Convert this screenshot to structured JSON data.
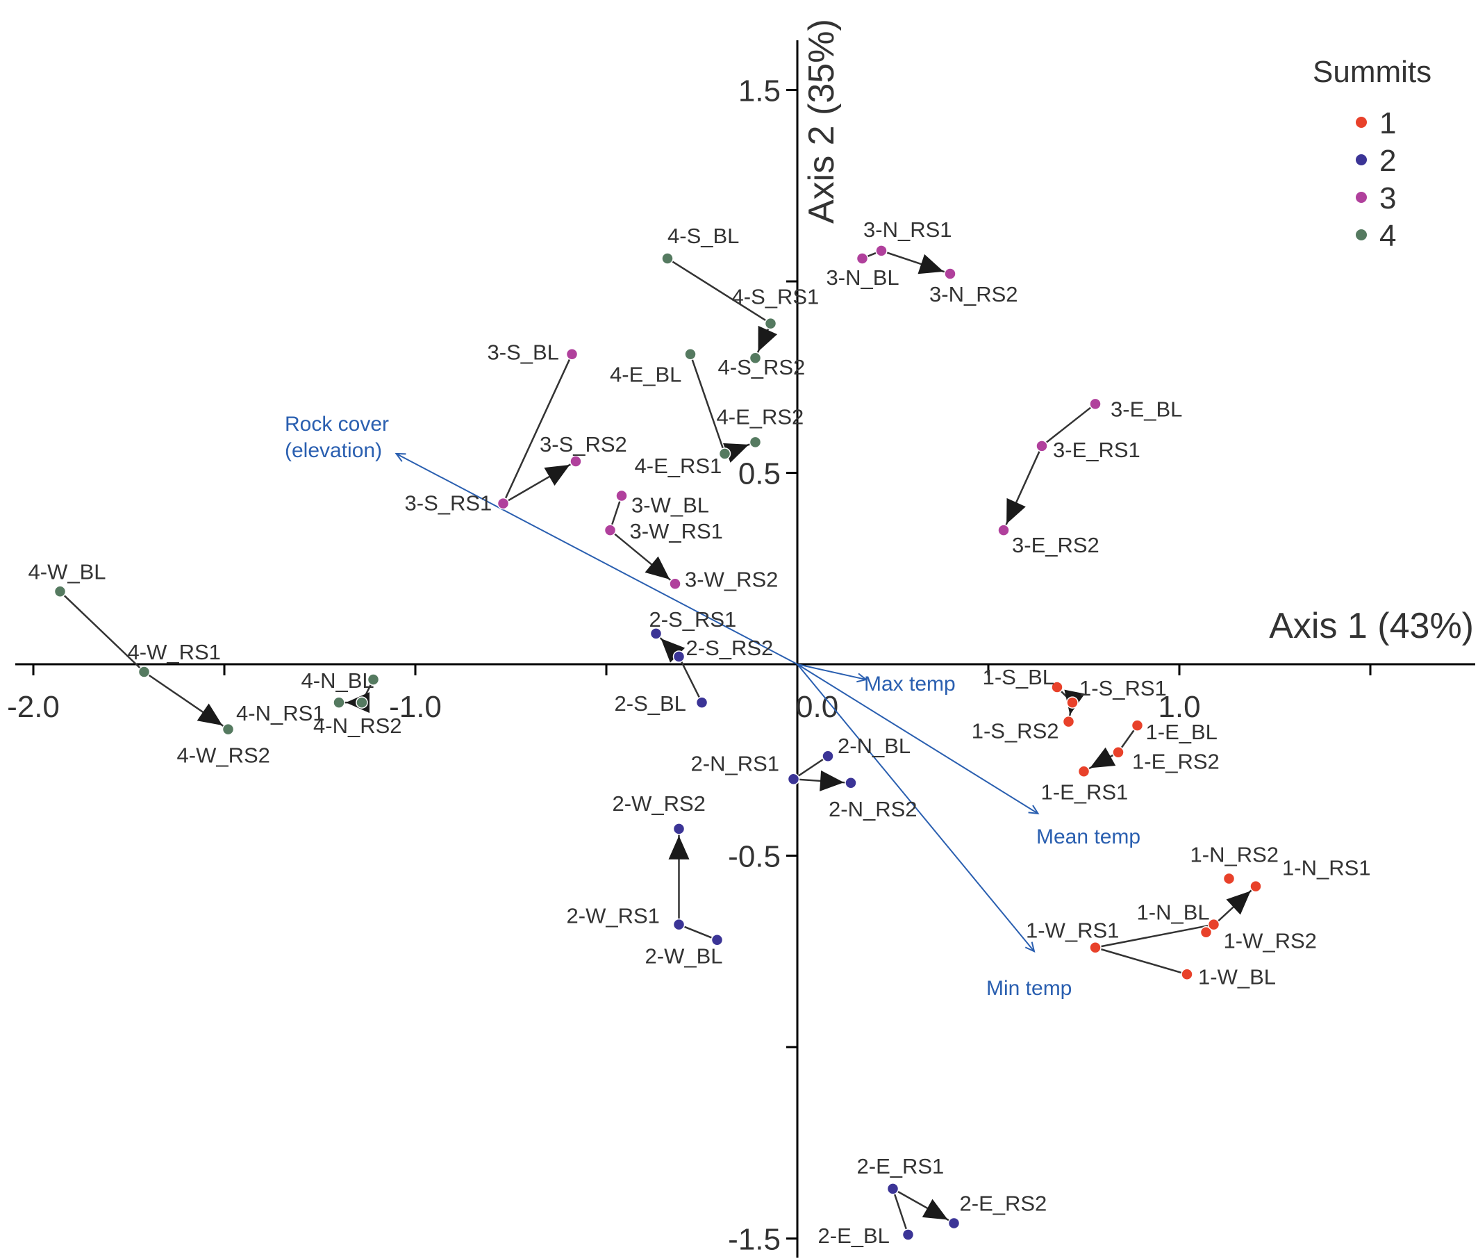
{
  "chart_data": {
    "type": "scatter",
    "title": "",
    "x_axis": {
      "label": "Axis 1 (43%)",
      "range": [
        -2.05,
        1.8
      ],
      "ticks": [
        -2.0,
        -1.0,
        0.0,
        1.0
      ],
      "tick_labels": [
        "-2.0",
        "-1.0",
        "0.0",
        "1.0"
      ]
    },
    "y_axis": {
      "label": "Axis 2 (35%)",
      "range": [
        -1.55,
        1.6
      ],
      "ticks": [
        1.5,
        0.5,
        -0.5,
        -1.5
      ],
      "tick_labels": [
        "1.5",
        "0.5",
        "-0.5",
        "-1.5"
      ],
      "minor_ticks": [
        1.0,
        -1.0
      ]
    },
    "legend": {
      "title": "Summits",
      "placement": "top-right",
      "entries": [
        {
          "label": "1",
          "color": "#e8412a"
        },
        {
          "label": "2",
          "color": "#3b3496"
        },
        {
          "label": "3",
          "color": "#b0409c"
        },
        {
          "label": "4",
          "color": "#557a60"
        }
      ]
    },
    "points": [
      {
        "label": "1-S_BL",
        "summit": 1,
        "x": 0.68,
        "y": -0.06
      },
      {
        "label": "1-S_RS1",
        "summit": 1,
        "x": 0.72,
        "y": -0.1
      },
      {
        "label": "1-S_RS2",
        "summit": 1,
        "x": 0.71,
        "y": -0.15
      },
      {
        "label": "1-E_BL",
        "summit": 1,
        "x": 0.89,
        "y": -0.16
      },
      {
        "label": "1-E_RS1",
        "summit": 1,
        "x": 0.75,
        "y": -0.28
      },
      {
        "label": "1-E_RS2",
        "summit": 1,
        "x": 0.84,
        "y": -0.23
      },
      {
        "label": "1-N_BL",
        "summit": 1,
        "x": 1.07,
        "y": -0.7
      },
      {
        "label": "1-N_RS1",
        "summit": 1,
        "x": 1.2,
        "y": -0.58
      },
      {
        "label": "1-N_RS2",
        "summit": 1,
        "x": 1.13,
        "y": -0.56
      },
      {
        "label": "1-W_BL",
        "summit": 1,
        "x": 1.02,
        "y": -0.81
      },
      {
        "label": "1-W_RS1",
        "summit": 1,
        "x": 0.78,
        "y": -0.74
      },
      {
        "label": "1-W_RS2",
        "summit": 1,
        "x": 1.09,
        "y": -0.68
      },
      {
        "label": "2-S_BL",
        "summit": 2,
        "x": -0.25,
        "y": -0.1
      },
      {
        "label": "2-S_RS1",
        "summit": 2,
        "x": -0.37,
        "y": 0.08
      },
      {
        "label": "2-S_RS2",
        "summit": 2,
        "x": -0.31,
        "y": 0.02
      },
      {
        "label": "2-N_BL",
        "summit": 2,
        "x": 0.08,
        "y": -0.24
      },
      {
        "label": "2-N_RS1",
        "summit": 2,
        "x": -0.01,
        "y": -0.3
      },
      {
        "label": "2-N_RS2",
        "summit": 2,
        "x": 0.14,
        "y": -0.31
      },
      {
        "label": "2-W_BL",
        "summit": 2,
        "x": -0.21,
        "y": -0.72
      },
      {
        "label": "2-W_RS1",
        "summit": 2,
        "x": -0.31,
        "y": -0.68
      },
      {
        "label": "2-W_RS2",
        "summit": 2,
        "x": -0.31,
        "y": -0.43
      },
      {
        "label": "2-E_BL",
        "summit": 2,
        "x": 0.29,
        "y": -1.49
      },
      {
        "label": "2-E_RS1",
        "summit": 2,
        "x": 0.25,
        "y": -1.37
      },
      {
        "label": "2-E_RS2",
        "summit": 2,
        "x": 0.41,
        "y": -1.46
      },
      {
        "label": "3-N_BL",
        "summit": 3,
        "x": 0.17,
        "y": 1.06
      },
      {
        "label": "3-N_RS1",
        "summit": 3,
        "x": 0.22,
        "y": 1.08
      },
      {
        "label": "3-N_RS2",
        "summit": 3,
        "x": 0.4,
        "y": 1.02
      },
      {
        "label": "3-S_BL",
        "summit": 3,
        "x": -0.59,
        "y": 0.81
      },
      {
        "label": "3-S_RS1",
        "summit": 3,
        "x": -0.77,
        "y": 0.42
      },
      {
        "label": "3-S_RS2",
        "summit": 3,
        "x": -0.58,
        "y": 0.53
      },
      {
        "label": "3-E_BL",
        "summit": 3,
        "x": 0.78,
        "y": 0.68
      },
      {
        "label": "3-E_RS1",
        "summit": 3,
        "x": 0.64,
        "y": 0.57
      },
      {
        "label": "3-E_RS2",
        "summit": 3,
        "x": 0.54,
        "y": 0.35
      },
      {
        "label": "3-W_BL",
        "summit": 3,
        "x": -0.46,
        "y": 0.44
      },
      {
        "label": "3-W_RS1",
        "summit": 3,
        "x": -0.49,
        "y": 0.35
      },
      {
        "label": "3-W_RS2",
        "summit": 3,
        "x": -0.32,
        "y": 0.21
      },
      {
        "label": "4-S_BL",
        "summit": 4,
        "x": -0.34,
        "y": 1.06
      },
      {
        "label": "4-S_RS1",
        "summit": 4,
        "x": -0.07,
        "y": 0.89
      },
      {
        "label": "4-S_RS2",
        "summit": 4,
        "x": -0.11,
        "y": 0.8
      },
      {
        "label": "4-E_BL",
        "summit": 4,
        "x": -0.28,
        "y": 0.81
      },
      {
        "label": "4-E_RS1",
        "summit": 4,
        "x": -0.19,
        "y": 0.55
      },
      {
        "label": "4-E_RS2",
        "summit": 4,
        "x": -0.11,
        "y": 0.58
      },
      {
        "label": "4-N_BL",
        "summit": 4,
        "x": -1.11,
        "y": -0.04
      },
      {
        "label": "4-N_RS1",
        "summit": 4,
        "x": -1.2,
        "y": -0.1
      },
      {
        "label": "4-N_RS2",
        "summit": 4,
        "x": -1.14,
        "y": -0.1
      },
      {
        "label": "4-W_BL",
        "summit": 4,
        "x": -1.93,
        "y": 0.19
      },
      {
        "label": "4-W_RS1",
        "summit": 4,
        "x": -1.71,
        "y": -0.02
      },
      {
        "label": "4-W_RS2",
        "summit": 4,
        "x": -1.49,
        "y": -0.17
      }
    ],
    "trajectories": [
      [
        "1-S_BL",
        "1-S_RS1",
        "1-S_RS2"
      ],
      [
        "1-E_BL",
        "1-E_RS2",
        "1-E_RS1"
      ],
      [
        "1-W_BL",
        "1-W_RS1",
        "1-W_RS2",
        "1-N_BL",
        "1-N_RS1"
      ],
      [
        "2-S_BL",
        "2-S_RS2",
        "2-S_RS1"
      ],
      [
        "2-N_BL",
        "2-N_RS1",
        "2-N_RS2"
      ],
      [
        "2-W_BL",
        "2-W_RS1",
        "2-W_RS2"
      ],
      [
        "2-E_BL",
        "2-E_RS1",
        "2-E_RS2"
      ],
      [
        "3-N_BL",
        "3-N_RS1",
        "3-N_RS2"
      ],
      [
        "3-S_BL",
        "3-S_RS1",
        "3-S_RS2"
      ],
      [
        "3-E_BL",
        "3-E_RS1",
        "3-E_RS2"
      ],
      [
        "3-W_BL",
        "3-W_RS1",
        "3-W_RS2"
      ],
      [
        "4-S_BL",
        "4-S_RS1",
        "4-S_RS2"
      ],
      [
        "4-E_BL",
        "4-E_RS1",
        "4-E_RS2"
      ],
      [
        "4-N_BL",
        "4-N_RS2",
        "4-N_RS1"
      ],
      [
        "4-W_BL",
        "4-W_RS1",
        "4-W_RS2"
      ]
    ],
    "vectors": [
      {
        "label": "Rock cover (elevation)",
        "lines": [
          "Rock cover",
          "(elevation)"
        ],
        "x": -1.05,
        "y": 0.55
      },
      {
        "label": "Max temp",
        "lines": [
          "Max temp"
        ],
        "x": 0.18,
        "y": -0.04
      },
      {
        "label": "Mean temp",
        "lines": [
          "Mean temp"
        ],
        "x": 0.63,
        "y": -0.39
      },
      {
        "label": "Min temp",
        "lines": [
          "Min temp"
        ],
        "x": 0.62,
        "y": -0.75
      }
    ]
  }
}
